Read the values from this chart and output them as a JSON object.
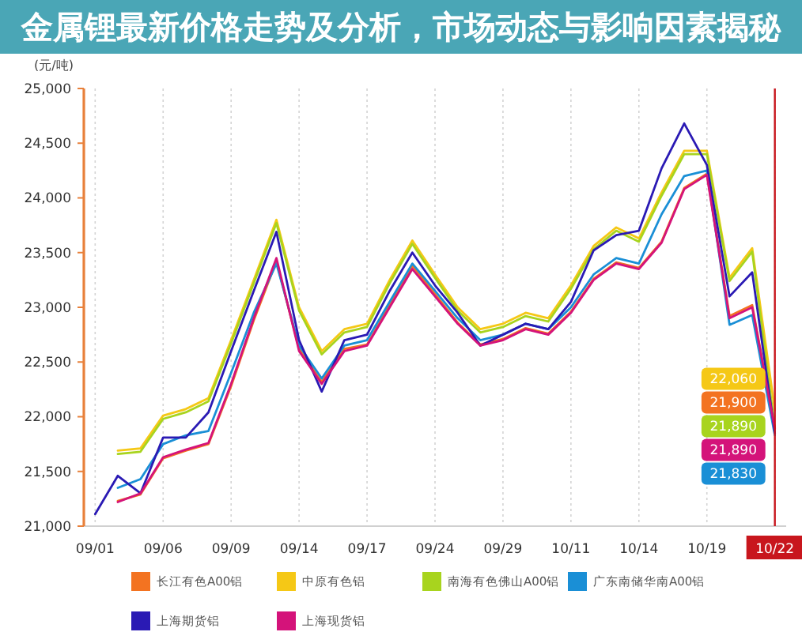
{
  "chart_data": {
    "type": "line",
    "title": "金属锂最新价格走势及分析，市场动态与影响因素揭秘",
    "ylabel": "(元/吨)",
    "categories": [
      "09/01",
      null,
      null,
      "09/06",
      null,
      null,
      "09/09",
      null,
      null,
      "09/14",
      null,
      null,
      "09/17",
      null,
      null,
      "09/24",
      null,
      null,
      "09/29",
      null,
      null,
      "10/11",
      null,
      null,
      "10/14",
      null,
      null,
      "10/19",
      null,
      null,
      "10/22"
    ],
    "ylim": [
      21000,
      25000
    ],
    "yticks": [
      {
        "value": 21000,
        "label": "21,000"
      },
      {
        "value": 21500,
        "label": "21,500"
      },
      {
        "value": 22000,
        "label": "22,000"
      },
      {
        "value": 22500,
        "label": "22,500"
      },
      {
        "value": 23000,
        "label": "23,000"
      },
      {
        "value": 23500,
        "label": "23,500"
      },
      {
        "value": 24000,
        "label": "24,000"
      },
      {
        "value": 24500,
        "label": "24,500"
      },
      {
        "value": 25000,
        "label": "25,000"
      }
    ],
    "grid": "x",
    "legend": "bottom",
    "ref_lines": [
      {
        "axis": "x",
        "value": "10/22",
        "color": "#c8161d"
      }
    ],
    "series": [
      {
        "name": "长江有色A00铝",
        "color": "#f37321",
        "values": [
          null,
          21230,
          21290,
          21620,
          21690,
          21750,
          22280,
          22880,
          23420,
          22620,
          22320,
          22620,
          22660,
          23020,
          23380,
          23120,
          22860,
          22660,
          22710,
          22810,
          22760,
          22960,
          23260,
          23410,
          23360,
          23600,
          24090,
          24220,
          22920,
          23020,
          21900
        ],
        "value_labels": [
          null,
          null,
          null,
          null,
          null,
          null,
          null,
          null,
          null,
          null,
          null,
          null,
          null,
          null,
          null,
          null,
          null,
          null,
          null,
          null,
          null,
          null,
          null,
          null,
          null,
          null,
          null,
          null,
          null,
          null,
          "21,900"
        ]
      },
      {
        "name": "中原有色铝",
        "color": "#f5c816",
        "values": [
          null,
          21690,
          21710,
          22010,
          22070,
          22170,
          22700,
          23250,
          23800,
          23000,
          22600,
          22800,
          22850,
          23250,
          23610,
          23300,
          23000,
          22800,
          22850,
          22950,
          22900,
          23200,
          23560,
          23730,
          23630,
          24050,
          24430,
          24430,
          23270,
          23540,
          22060
        ],
        "value_labels": [
          null,
          null,
          null,
          null,
          null,
          null,
          null,
          null,
          null,
          null,
          null,
          null,
          null,
          null,
          null,
          null,
          null,
          null,
          null,
          null,
          null,
          null,
          null,
          null,
          null,
          null,
          null,
          null,
          null,
          null,
          "22,060"
        ]
      },
      {
        "name": "南海有色佛山A00铝",
        "color": "#a8d41e",
        "values": [
          null,
          21660,
          21680,
          21980,
          22040,
          22140,
          22670,
          23220,
          23770,
          22970,
          22570,
          22770,
          22820,
          23220,
          23580,
          23270,
          22970,
          22770,
          22820,
          22920,
          22870,
          23170,
          23530,
          23700,
          23600,
          24020,
          24400,
          24400,
          23240,
          23510,
          21890
        ],
        "value_labels": [
          null,
          null,
          null,
          null,
          null,
          null,
          null,
          null,
          null,
          null,
          null,
          null,
          null,
          null,
          null,
          null,
          null,
          null,
          null,
          null,
          null,
          null,
          null,
          null,
          null,
          null,
          null,
          null,
          null,
          null,
          "21,890"
        ]
      },
      {
        "name": "广东南储华南A00铝",
        "color": "#1a8fd6",
        "values": [
          null,
          21350,
          21430,
          21750,
          21830,
          21870,
          22400,
          22950,
          23400,
          22650,
          22350,
          22650,
          22700,
          23050,
          23400,
          23150,
          22900,
          22700,
          22750,
          22850,
          22800,
          23000,
          23300,
          23450,
          23400,
          23850,
          24200,
          24250,
          22840,
          22930,
          21830
        ],
        "value_labels": [
          null,
          null,
          null,
          null,
          null,
          null,
          null,
          null,
          null,
          null,
          null,
          null,
          null,
          null,
          null,
          null,
          null,
          null,
          null,
          null,
          null,
          null,
          null,
          null,
          null,
          null,
          null,
          null,
          null,
          null,
          "21,830"
        ]
      },
      {
        "name": "上海期货铝",
        "color": "#2a1ab4",
        "values": [
          21110,
          21460,
          21300,
          21810,
          21810,
          22040,
          22600,
          23150,
          23690,
          22700,
          22230,
          22700,
          22750,
          23150,
          23500,
          23200,
          22950,
          22650,
          22750,
          22850,
          22800,
          23050,
          23520,
          23660,
          23700,
          24270,
          24680,
          24300,
          23100,
          23320,
          21850
        ]
      },
      {
        "name": "上海现货铝",
        "color": "#d4137a",
        "values": [
          null,
          21220,
          21300,
          21630,
          21700,
          21760,
          22300,
          22900,
          23450,
          22600,
          22300,
          22600,
          22650,
          23000,
          23350,
          23100,
          22850,
          22650,
          22700,
          22800,
          22750,
          22950,
          23250,
          23400,
          23350,
          23590,
          24080,
          24210,
          22900,
          23000,
          21890
        ],
        "value_labels": [
          null,
          null,
          null,
          null,
          null,
          null,
          null,
          null,
          null,
          null,
          null,
          null,
          null,
          null,
          null,
          null,
          null,
          null,
          null,
          null,
          null,
          null,
          null,
          null,
          null,
          null,
          null,
          null,
          null,
          null,
          "21,890"
        ]
      }
    ]
  }
}
